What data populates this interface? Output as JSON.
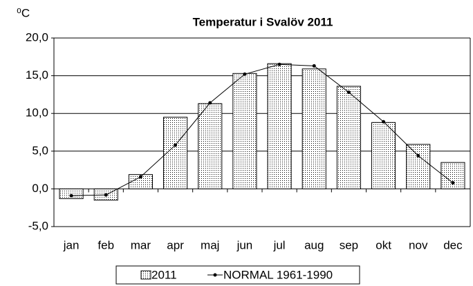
{
  "chart_data": {
    "type": "bar-line",
    "title": "Temperatur i Svalöv 2011",
    "y_axis_label": "⁰C",
    "categories": [
      "jan",
      "feb",
      "mar",
      "apr",
      "maj",
      "jun",
      "jul",
      "aug",
      "sep",
      "okt",
      "nov",
      "dec"
    ],
    "series": [
      {
        "name": "2011",
        "type": "bar",
        "color": "#000000",
        "values": [
          -1.3,
          -1.5,
          1.9,
          9.5,
          11.3,
          15.3,
          16.6,
          15.9,
          13.6,
          8.8,
          5.9,
          3.5
        ]
      },
      {
        "name": "NORMAL 1961-1990",
        "type": "line",
        "color": "#000000",
        "values": [
          -0.9,
          -0.8,
          1.6,
          5.8,
          11.4,
          15.2,
          16.5,
          16.3,
          12.8,
          8.9,
          4.4,
          0.8
        ]
      }
    ],
    "ylim": [
      -5,
      20
    ],
    "yticks": [
      {
        "value": -5,
        "label": "-5,0"
      },
      {
        "value": 0,
        "label": "0,0"
      },
      {
        "value": 5,
        "label": "5,0"
      },
      {
        "value": 10,
        "label": "10,0"
      },
      {
        "value": 15,
        "label": "15,0"
      },
      {
        "value": 20,
        "label": "20,0"
      }
    ],
    "grid": true,
    "legend": "bottom"
  }
}
